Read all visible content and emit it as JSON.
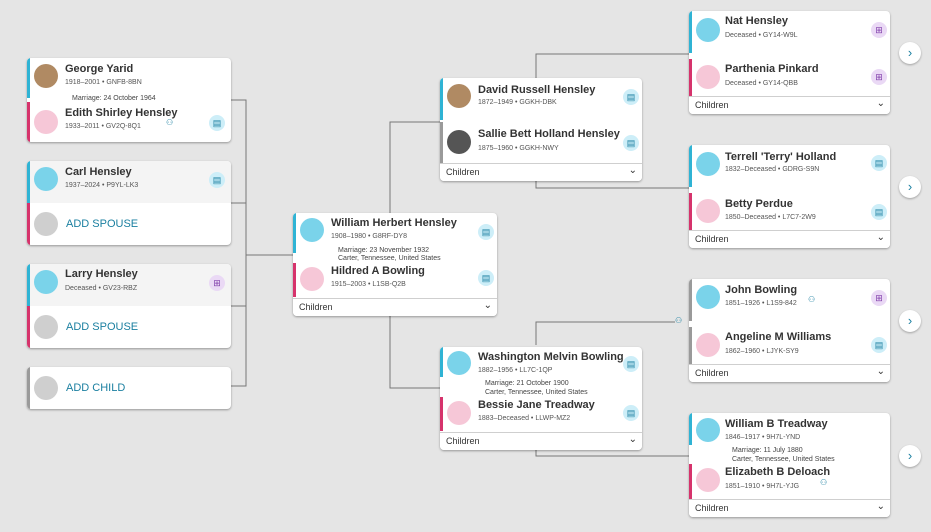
{
  "colors": {
    "male": "#2fb3d4",
    "female": "#d6336c",
    "link": "#1a7fa0"
  },
  "icons": {
    "record": "record-hint-icon",
    "research": "research-suggestion-icon",
    "expand": "chevron-right-icon",
    "chevron": "chevron-down-icon",
    "relationship": "relationship-icon"
  },
  "left": {
    "c1": {
      "p1": {
        "name": "George Yarid",
        "dates": "1918–2001 • GNFB-8BN"
      },
      "marriage": "Marriage: 24 October 1964",
      "p2": {
        "name": "Edith Shirley Hensley",
        "dates": "1933–2011 • GV2Q-8Q1"
      }
    },
    "c2": {
      "p1": {
        "name": "Carl Hensley",
        "dates": "1937–2024 • P9YL-LK3"
      },
      "add": "ADD SPOUSE"
    },
    "c3": {
      "p1": {
        "name": "Larry Hensley",
        "dates": "Deceased • GV23-RBZ"
      },
      "add": "ADD SPOUSE"
    },
    "c4": {
      "add": "ADD CHILD"
    }
  },
  "focus": {
    "p1": {
      "name": "William Herbert Hensley",
      "dates": "1908–1980 • G8RF-DY8"
    },
    "marriage1": "Marriage: 23 November 1932",
    "marriage2": "Carter, Tennessee, United States",
    "p2": {
      "name": "Hildred A Bowling",
      "dates": "1915–2003 • L1SB-Q2B"
    },
    "children": "Children"
  },
  "parents": {
    "top": {
      "p1": {
        "name": "David Russell Hensley",
        "dates": "1872–1949 • GGKH-DBK"
      },
      "p2": {
        "name": "Sallie Bett Holland Hensley",
        "dates": "1875–1960 • GGKH-NWY"
      },
      "children": "Children"
    },
    "bottom": {
      "p1": {
        "name": "Washington Melvin Bowling",
        "dates": "1882–1956 • LL7C-1QP"
      },
      "marriage1": "Marriage: 21 October 1900",
      "marriage2": "Carter, Tennessee, United States",
      "p2": {
        "name": "Bessie Jane Treadway",
        "dates": "1883–Deceased • LLWP-MZ2"
      },
      "children": "Children"
    }
  },
  "grand": {
    "g1": {
      "p1": {
        "name": "Nat Hensley",
        "dates": "Deceased • GY14-W9L"
      },
      "p2": {
        "name": "Parthenia Pinkard",
        "dates": "Deceased • GY14-QBB"
      },
      "children": "Children"
    },
    "g2": {
      "p1": {
        "name": "Terrell 'Terry' Holland",
        "dates": "1832–Deceased • GDRG-S9N"
      },
      "p2": {
        "name": "Betty Perdue",
        "dates": "1850–Deceased • L7C7-2W9"
      },
      "children": "Children"
    },
    "g3": {
      "p1": {
        "name": "John Bowling",
        "dates": "1851–1926 • L1S9-842"
      },
      "p2": {
        "name": "Angeline M Williams",
        "dates": "1862–1960 • LJYK-SY9"
      },
      "children": "Children"
    },
    "g4": {
      "p1": {
        "name": "William B Treadway",
        "dates": "1846–1917 • 9H7L-YND"
      },
      "marriage1": "Marriage: 11 July 1880",
      "marriage2": "Carter, Tennessee, United States",
      "p2": {
        "name": "Elizabeth B Deloach",
        "dates": "1851–1910 • 9H7L-YJG"
      },
      "children": "Children"
    }
  }
}
